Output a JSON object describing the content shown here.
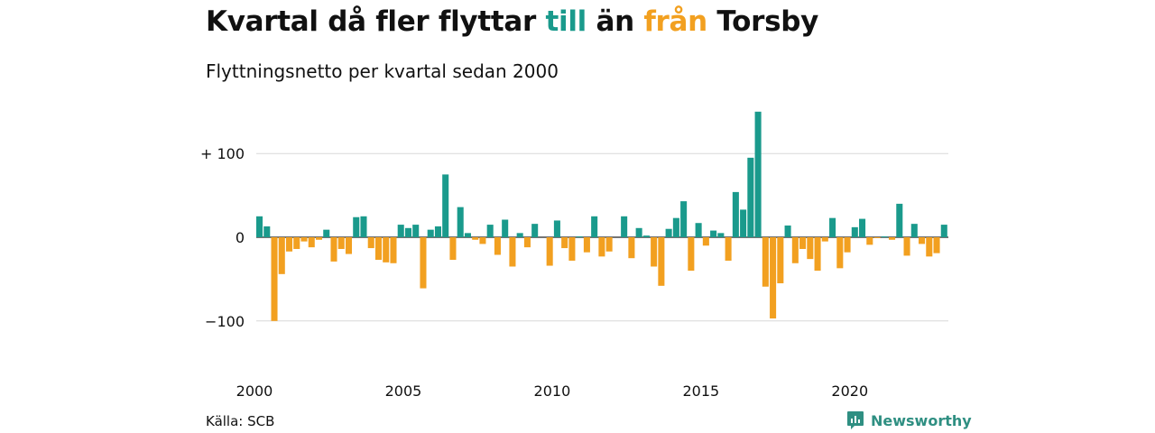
{
  "title": {
    "part1": "Kvartal då fler flyttar ",
    "till": "till",
    "part2": " än ",
    "fran": "från",
    "part3": " Torsby"
  },
  "subtitle": "Flyttningsnetto per kvartal sedan 2000",
  "source": "Källa: SCB",
  "brand": "Newsworthy",
  "colors": {
    "positive": "#1a9a8c",
    "negative": "#f2a020",
    "grid": "#d8d8d8",
    "text": "#111111",
    "brand": "#2f8f82"
  },
  "chart_data": {
    "type": "bar",
    "start_year": 2000,
    "ylim": [
      -130,
      150
    ],
    "y_ticks": [
      {
        "value": 100,
        "label": "+ 100"
      },
      {
        "value": 0,
        "label": "0"
      },
      {
        "value": -100,
        "label": "−100"
      }
    ],
    "x_ticks": [
      "2000",
      "2005",
      "2010",
      "2015",
      "2020"
    ],
    "values": [
      25,
      13,
      -100,
      -44,
      -17,
      -14,
      -5,
      -12,
      -3,
      9,
      -29,
      -14,
      -20,
      24,
      25,
      -13,
      -27,
      -30,
      -31,
      15,
      11,
      15,
      -61,
      9,
      13,
      75,
      -27,
      36,
      5,
      -3,
      -8,
      15,
      -21,
      21,
      -35,
      5,
      -12,
      16,
      0,
      -34,
      20,
      -13,
      -28,
      1,
      -18,
      25,
      -23,
      -17,
      0,
      25,
      -25,
      11,
      2,
      -35,
      -58,
      10,
      23,
      43,
      -40,
      17,
      -10,
      8,
      5,
      -28,
      54,
      33,
      95,
      150,
      -59,
      -97,
      -55,
      14,
      -31,
      -14,
      -26,
      -40,
      -5,
      23,
      -37,
      -18,
      12,
      22,
      -9,
      -1,
      1,
      -3,
      40,
      -22,
      16,
      -8,
      -23,
      -19,
      15
    ]
  }
}
